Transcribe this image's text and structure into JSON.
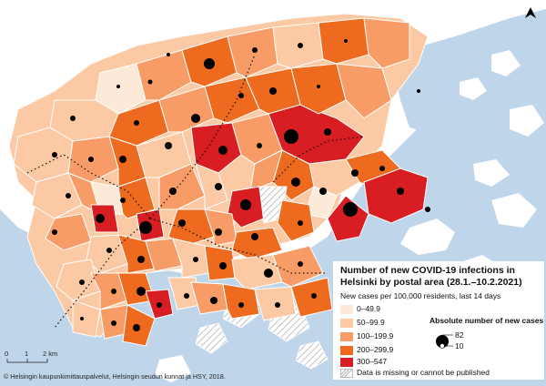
{
  "legend": {
    "title": "Number of new COVID-19 infections in Helsinki by postal area (28.1.–10.2.2021)",
    "subtitle": "New cases per 100,000 residents, last 14 days",
    "classes": [
      {
        "label": "0–49.9",
        "color": "#fde9d7"
      },
      {
        "label": "50–99.9",
        "color": "#fbc9a3"
      },
      {
        "label": "100–199.9",
        "color": "#f79c66"
      },
      {
        "label": "200–299.9",
        "color": "#ee6a1f"
      },
      {
        "label": "300–547",
        "color": "#d81e22"
      }
    ],
    "missing_label": "Data is missing or cannot be published",
    "absolute_title": "Absolute number of new cases",
    "absolute_max": "82",
    "absolute_min": "10"
  },
  "scale": {
    "zero": "0",
    "one": "1",
    "two": "2 km"
  },
  "credit": "© Helsingin kaupunkimittauspalvelut, Helsingin seudun kunnat ja HSY, 2018.",
  "colors": {
    "sea": "#bfd5ea",
    "land_outline": "#ffffff",
    "dot": "#000000"
  },
  "icons": {
    "north": "north-arrow-icon"
  }
}
